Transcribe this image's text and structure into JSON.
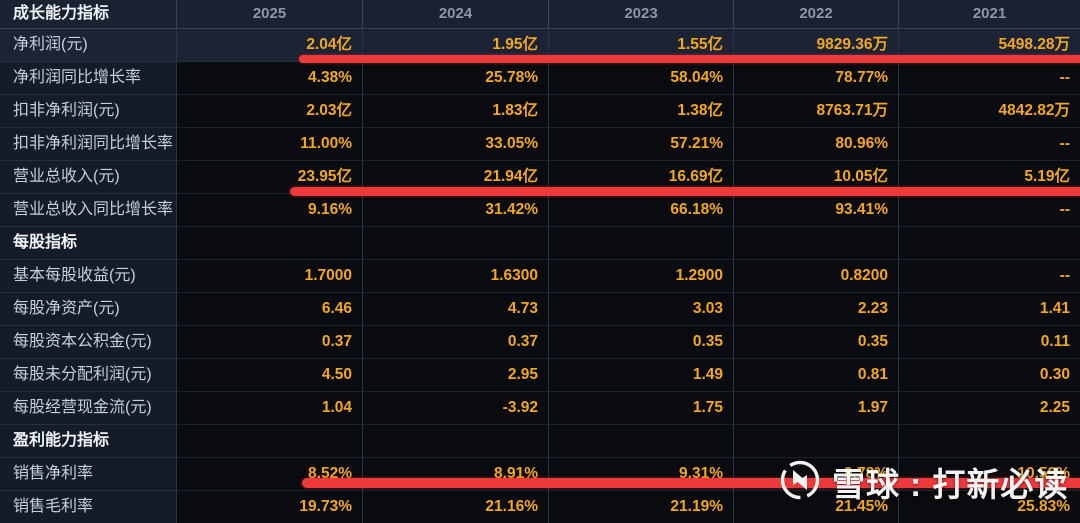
{
  "table": {
    "corner_label": "成长能力指标",
    "years": [
      "2025",
      "2024",
      "2023",
      "2022",
      "2021"
    ],
    "rows": [
      {
        "label": "净利润(元)",
        "type": "data",
        "highlight": true,
        "redline": true,
        "values": [
          "2.04亿",
          "1.95亿",
          "1.55亿",
          "9829.36万",
          "5498.28万"
        ]
      },
      {
        "label": "净利润同比增长率",
        "type": "data",
        "values": [
          "4.38%",
          "25.78%",
          "58.04%",
          "78.77%",
          "--"
        ]
      },
      {
        "label": "扣非净利润(元)",
        "type": "data",
        "values": [
          "2.03亿",
          "1.83亿",
          "1.38亿",
          "8763.71万",
          "4842.82万"
        ]
      },
      {
        "label": "扣非净利润同比增长率",
        "type": "data",
        "values": [
          "11.00%",
          "33.05%",
          "57.21%",
          "80.96%",
          "--"
        ]
      },
      {
        "label": "营业总收入(元)",
        "type": "data",
        "redline": true,
        "values": [
          "23.95亿",
          "21.94亿",
          "16.69亿",
          "10.05亿",
          "5.19亿"
        ]
      },
      {
        "label": "营业总收入同比增长率",
        "type": "data",
        "values": [
          "9.16%",
          "31.42%",
          "66.18%",
          "93.41%",
          "--"
        ]
      },
      {
        "label": "每股指标",
        "type": "section",
        "values": [
          "",
          "",
          "",
          "",
          ""
        ]
      },
      {
        "label": "基本每股收益(元)",
        "type": "data",
        "values": [
          "1.7000",
          "1.6300",
          "1.2900",
          "0.8200",
          "--"
        ]
      },
      {
        "label": "每股净资产(元)",
        "type": "data",
        "values": [
          "6.46",
          "4.73",
          "3.03",
          "2.23",
          "1.41"
        ]
      },
      {
        "label": "每股资本公积金(元)",
        "type": "data",
        "values": [
          "0.37",
          "0.37",
          "0.35",
          "0.35",
          "0.11"
        ]
      },
      {
        "label": "每股未分配利润(元)",
        "type": "data",
        "values": [
          "4.50",
          "2.95",
          "1.49",
          "0.81",
          "0.30"
        ]
      },
      {
        "label": "每股经营现金流(元)",
        "type": "data",
        "values": [
          "1.04",
          "-3.92",
          "1.75",
          "1.97",
          "2.25"
        ]
      },
      {
        "label": "盈利能力指标",
        "type": "section",
        "values": [
          "",
          "",
          "",
          "",
          ""
        ]
      },
      {
        "label": "销售净利率",
        "type": "data",
        "redline": true,
        "values": [
          "8.52%",
          "8.91%",
          "9.31%",
          "9.78%",
          "10.59%"
        ]
      },
      {
        "label": "销售毛利率",
        "type": "data",
        "values": [
          "19.73%",
          "21.16%",
          "21.19%",
          "21.45%",
          "25.83%"
        ]
      }
    ]
  },
  "annotations": {
    "red_line_color": "#ee393b",
    "red_line_count": 3
  },
  "watermark": {
    "logo": "xueqiu-snowball-icon",
    "text": "雪球 : 打新必读"
  },
  "colors": {
    "value_text": "#f2a71d",
    "label_text": "#c6cedb",
    "year_text": "#8d96a8",
    "header_bg": "#1a2231",
    "label_cell_bg": "#151b28",
    "value_cell_bg": "#0a0b0e",
    "highlight_row_bg": "#1b2335"
  }
}
